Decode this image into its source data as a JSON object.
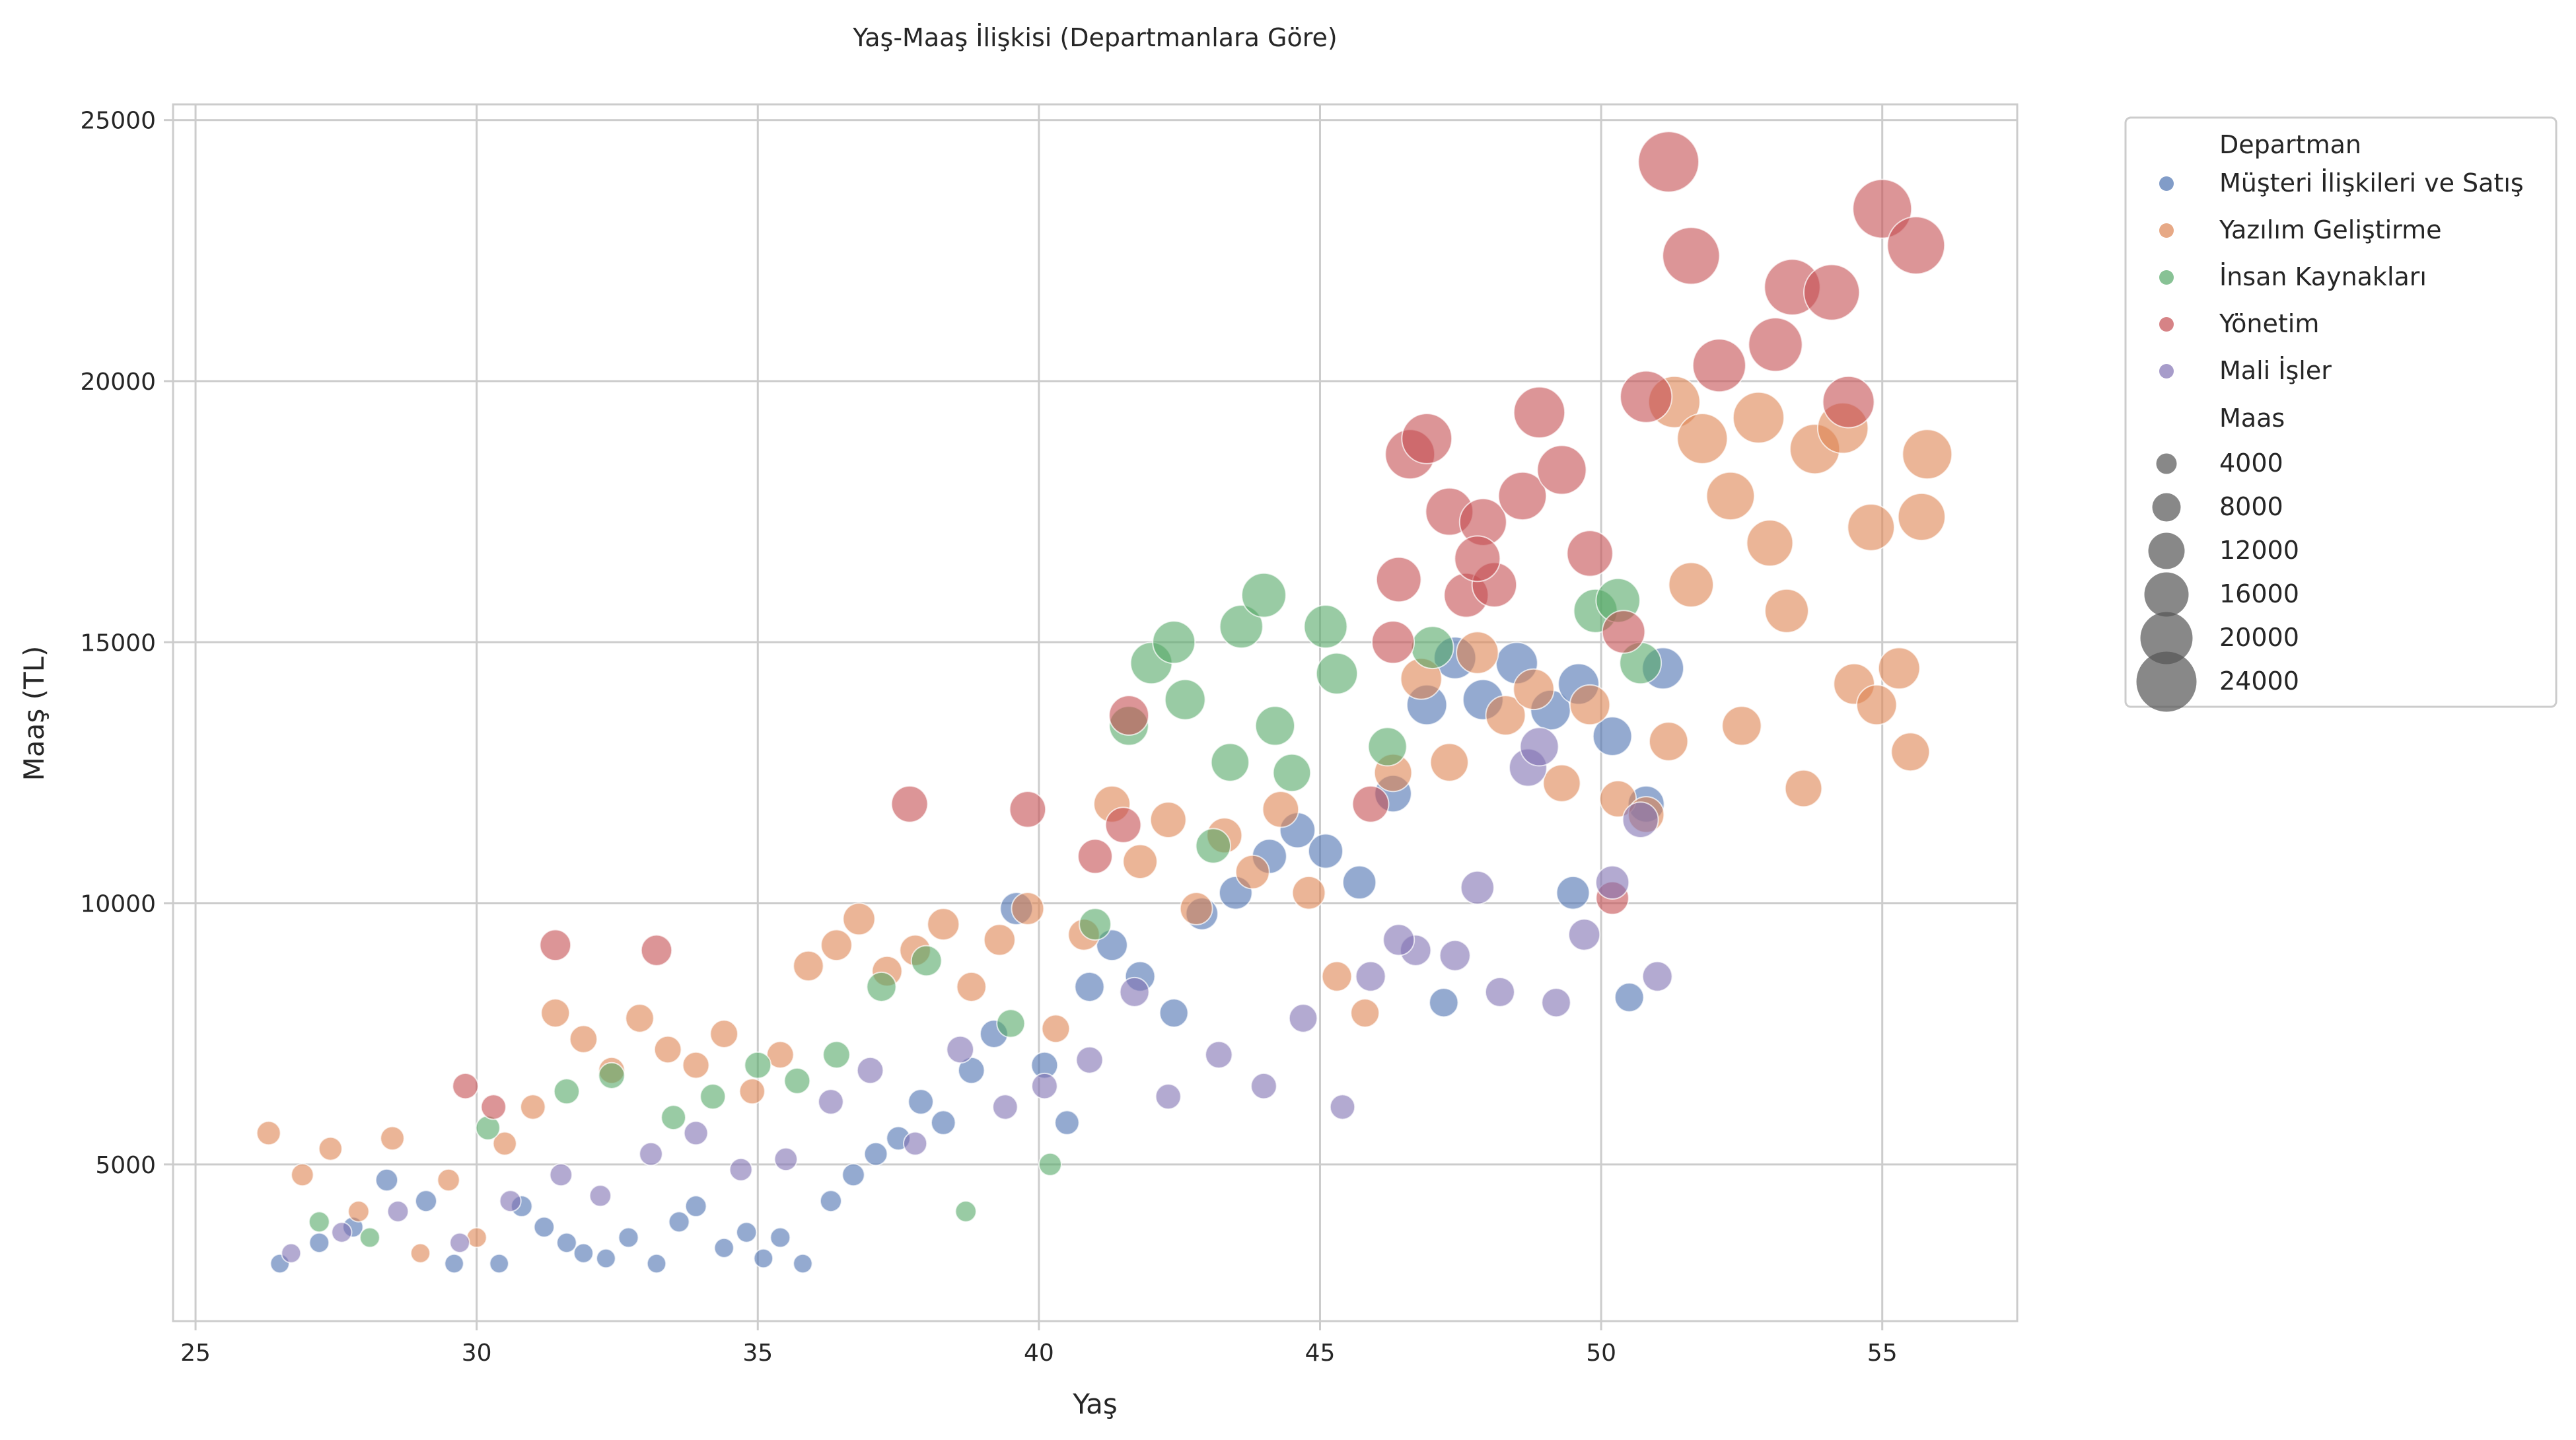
{
  "chart_data": {
    "type": "scatter",
    "title": "Yaş-Maaş İlişkisi (Departmanlara Göre)",
    "xlabel": "Yaş",
    "ylabel": "Maaş (TL)",
    "xlim": [
      24.6,
      57.4
    ],
    "ylim": [
      2000,
      25300
    ],
    "x_ticks": [
      25,
      30,
      35,
      40,
      45,
      50,
      55
    ],
    "y_ticks": [
      5000,
      10000,
      15000,
      20000,
      25000
    ],
    "grid": true,
    "legend_position": "outside-right",
    "hue_title": "Departman",
    "size_title": "Maas",
    "size_legend_values": [
      4000,
      8000,
      12000,
      16000,
      20000,
      24000
    ],
    "series": [
      {
        "name": "Müşteri İlişkileri ve Satış",
        "color": "#4c72b0",
        "x": [
          26.5,
          27.2,
          27.8,
          28.4,
          29.1,
          29.6,
          30.4,
          30.8,
          31.2,
          31.6,
          31.9,
          32.3,
          32.7,
          33.2,
          33.6,
          33.9,
          34.4,
          34.8,
          35.1,
          35.4,
          35.8,
          36.3,
          36.7,
          37.1,
          37.5,
          37.9,
          38.3,
          38.8,
          39.2,
          39.6,
          40.1,
          40.5,
          40.9,
          41.3,
          41.8,
          42.4,
          42.9,
          43.5,
          44.1,
          44.6,
          45.1,
          45.7,
          46.3,
          46.9,
          47.4,
          47.9,
          48.5,
          49.1,
          49.6,
          50.2,
          50.8,
          51.1,
          47.2,
          49.5,
          50.5
        ],
        "y": [
          3100,
          3500,
          3800,
          4700,
          4300,
          3100,
          3100,
          4200,
          3800,
          3500,
          3300,
          3200,
          3600,
          3100,
          3900,
          4200,
          3400,
          3700,
          3200,
          3600,
          3100,
          4300,
          4800,
          5200,
          5500,
          6200,
          5800,
          6800,
          7500,
          9900,
          6900,
          5800,
          8400,
          9200,
          8600,
          7900,
          9800,
          10200,
          10900,
          11400,
          11000,
          10400,
          12100,
          13800,
          14700,
          13900,
          14600,
          13700,
          14200,
          13200,
          11900,
          14500,
          8100,
          10200,
          8200
        ],
        "s": [
          3100,
          3500,
          3800,
          4700,
          4300,
          3100,
          3100,
          4200,
          3800,
          3500,
          3300,
          3200,
          3600,
          3100,
          3900,
          4200,
          3400,
          3700,
          3200,
          3600,
          3100,
          4300,
          4800,
          5200,
          5500,
          6200,
          5800,
          6800,
          7500,
          9900,
          6900,
          5800,
          8400,
          9200,
          8600,
          7900,
          9800,
          10200,
          10900,
          11400,
          11000,
          10400,
          12100,
          13800,
          14700,
          13900,
          14600,
          13700,
          14200,
          13200,
          11900,
          14500,
          8100,
          10200,
          8200
        ]
      },
      {
        "name": "Yazılım Geliştirme",
        "color": "#dd8452",
        "x": [
          26.3,
          26.9,
          27.4,
          27.9,
          28.5,
          29.0,
          29.5,
          30.0,
          30.5,
          31.0,
          31.4,
          31.9,
          32.4,
          32.9,
          33.4,
          33.9,
          34.4,
          34.9,
          35.4,
          35.9,
          36.4,
          36.8,
          37.3,
          37.8,
          38.3,
          38.8,
          39.3,
          39.8,
          40.3,
          40.8,
          41.3,
          41.8,
          42.3,
          42.8,
          43.3,
          43.8,
          44.3,
          44.8,
          45.3,
          45.8,
          46.3,
          46.8,
          47.3,
          47.8,
          48.3,
          48.8,
          49.3,
          49.8,
          50.3,
          50.8,
          51.3,
          51.8,
          52.3,
          52.8,
          53.3,
          53.8,
          54.3,
          54.8,
          55.3,
          55.8,
          51.6,
          52.5,
          53.6,
          54.5,
          55.5,
          51.2,
          53.0,
          54.9,
          55.7
        ],
        "y": [
          5600,
          4800,
          5300,
          4100,
          5500,
          3300,
          4700,
          3600,
          5400,
          6100,
          7900,
          7400,
          6800,
          7800,
          7200,
          6900,
          7500,
          6400,
          7100,
          8800,
          9200,
          9700,
          8700,
          9100,
          9600,
          8400,
          9300,
          9900,
          7600,
          9400,
          11900,
          10800,
          11600,
          9900,
          11300,
          10600,
          11800,
          10200,
          8600,
          7900,
          12500,
          14300,
          12700,
          14800,
          13600,
          14100,
          12300,
          13800,
          12000,
          11700,
          19600,
          18900,
          17800,
          19300,
          15600,
          18700,
          19100,
          17200,
          14500,
          18600,
          16100,
          13400,
          12200,
          14200,
          12900,
          13100,
          16900,
          13800,
          17400
        ],
        "s": [
          5600,
          4800,
          5300,
          4100,
          5500,
          3300,
          4700,
          3600,
          5400,
          6100,
          7900,
          7400,
          6800,
          7800,
          7200,
          6900,
          7500,
          6400,
          7100,
          8800,
          9200,
          9700,
          8700,
          9100,
          9600,
          8400,
          9300,
          9900,
          7600,
          9400,
          11900,
          10800,
          11600,
          9900,
          11300,
          10600,
          11800,
          10200,
          8600,
          7900,
          12500,
          14300,
          12700,
          14800,
          13600,
          14100,
          12300,
          13800,
          12000,
          11700,
          19600,
          18900,
          17800,
          19300,
          15600,
          18700,
          19100,
          17200,
          14500,
          18600,
          16100,
          13400,
          12200,
          14200,
          12900,
          13100,
          16900,
          13800,
          17400
        ]
      },
      {
        "name": "İnsan Kaynakları",
        "color": "#55a868",
        "x": [
          27.2,
          28.1,
          30.2,
          31.6,
          32.4,
          33.5,
          34.2,
          35.0,
          35.7,
          36.4,
          37.2,
          38.0,
          38.7,
          39.5,
          40.2,
          41.0,
          41.6,
          42.0,
          42.4,
          42.6,
          43.1,
          43.4,
          43.6,
          44.0,
          44.2,
          44.5,
          45.1,
          45.3,
          46.2,
          47.0,
          49.9,
          50.3,
          50.7
        ],
        "y": [
          3900,
          3600,
          5700,
          6400,
          6700,
          5900,
          6300,
          6900,
          6600,
          7100,
          8400,
          8900,
          4100,
          7700,
          5000,
          9600,
          13400,
          14600,
          15000,
          13900,
          11100,
          12700,
          15300,
          15900,
          13400,
          12500,
          15300,
          14400,
          13000,
          14900,
          15600,
          15800,
          14600
        ],
        "s": [
          3900,
          3600,
          5700,
          6400,
          6700,
          5900,
          6300,
          6900,
          6600,
          7100,
          8400,
          8900,
          4100,
          7700,
          5000,
          9600,
          13400,
          14600,
          15000,
          13900,
          11100,
          12700,
          15300,
          15900,
          13400,
          12500,
          15300,
          14400,
          13000,
          14900,
          15600,
          15800,
          14600
        ]
      },
      {
        "name": "Yönetim",
        "color": "#c44e52",
        "x": [
          29.8,
          30.3,
          31.4,
          33.2,
          37.7,
          39.8,
          41.0,
          41.5,
          41.6,
          45.9,
          46.3,
          46.4,
          46.6,
          46.9,
          47.3,
          47.6,
          47.9,
          48.1,
          48.6,
          48.9,
          49.3,
          49.8,
          50.2,
          50.8,
          51.2,
          51.6,
          52.1,
          53.1,
          53.4,
          54.1,
          54.4,
          55.0,
          55.6,
          47.8,
          50.4
        ],
        "y": [
          6500,
          6100,
          9200,
          9100,
          11900,
          11800,
          10900,
          11500,
          13600,
          11900,
          15000,
          16200,
          18600,
          18900,
          17500,
          15900,
          17300,
          16100,
          17800,
          19400,
          18300,
          16700,
          10100,
          19700,
          24200,
          22400,
          20300,
          20700,
          21800,
          21700,
          19600,
          23300,
          22600,
          16600,
          15200
        ],
        "s": [
          6500,
          6100,
          9200,
          9100,
          11900,
          11800,
          10900,
          11500,
          13600,
          11900,
          15000,
          16200,
          18600,
          18900,
          17500,
          15900,
          17300,
          16100,
          17800,
          19400,
          18300,
          16700,
          10100,
          19700,
          24200,
          22400,
          20300,
          20700,
          21800,
          21700,
          19600,
          23300,
          22600,
          16600,
          15200
        ]
      },
      {
        "name": "Mali İşler",
        "color": "#8172b3",
        "x": [
          26.7,
          27.6,
          28.6,
          29.7,
          30.6,
          31.5,
          32.2,
          33.1,
          33.9,
          34.7,
          35.5,
          36.3,
          37.0,
          37.8,
          38.6,
          39.4,
          40.1,
          40.9,
          41.7,
          42.3,
          43.2,
          44.0,
          44.7,
          45.4,
          45.9,
          46.7,
          47.4,
          47.8,
          48.2,
          48.7,
          49.2,
          49.7,
          50.2,
          50.7,
          51.0,
          46.4,
          48.9
        ],
        "y": [
          3300,
          3700,
          4100,
          3500,
          4300,
          4800,
          4400,
          5200,
          5600,
          4900,
          5100,
          6200,
          6800,
          5400,
          7200,
          6100,
          6500,
          7000,
          8300,
          6300,
          7100,
          6500,
          7800,
          6100,
          8600,
          9100,
          9000,
          10300,
          8300,
          12600,
          8100,
          9400,
          10400,
          11600,
          8600,
          9300,
          13000
        ],
        "s": [
          3300,
          3700,
          4100,
          3500,
          4300,
          4800,
          4400,
          5200,
          5600,
          4900,
          5100,
          6200,
          6800,
          5400,
          7200,
          6100,
          6500,
          7000,
          8300,
          6300,
          7100,
          6500,
          7800,
          6100,
          8600,
          9100,
          9000,
          10300,
          8300,
          12600,
          8100,
          9400,
          10400,
          11600,
          8600,
          9300,
          13000
        ]
      }
    ]
  }
}
